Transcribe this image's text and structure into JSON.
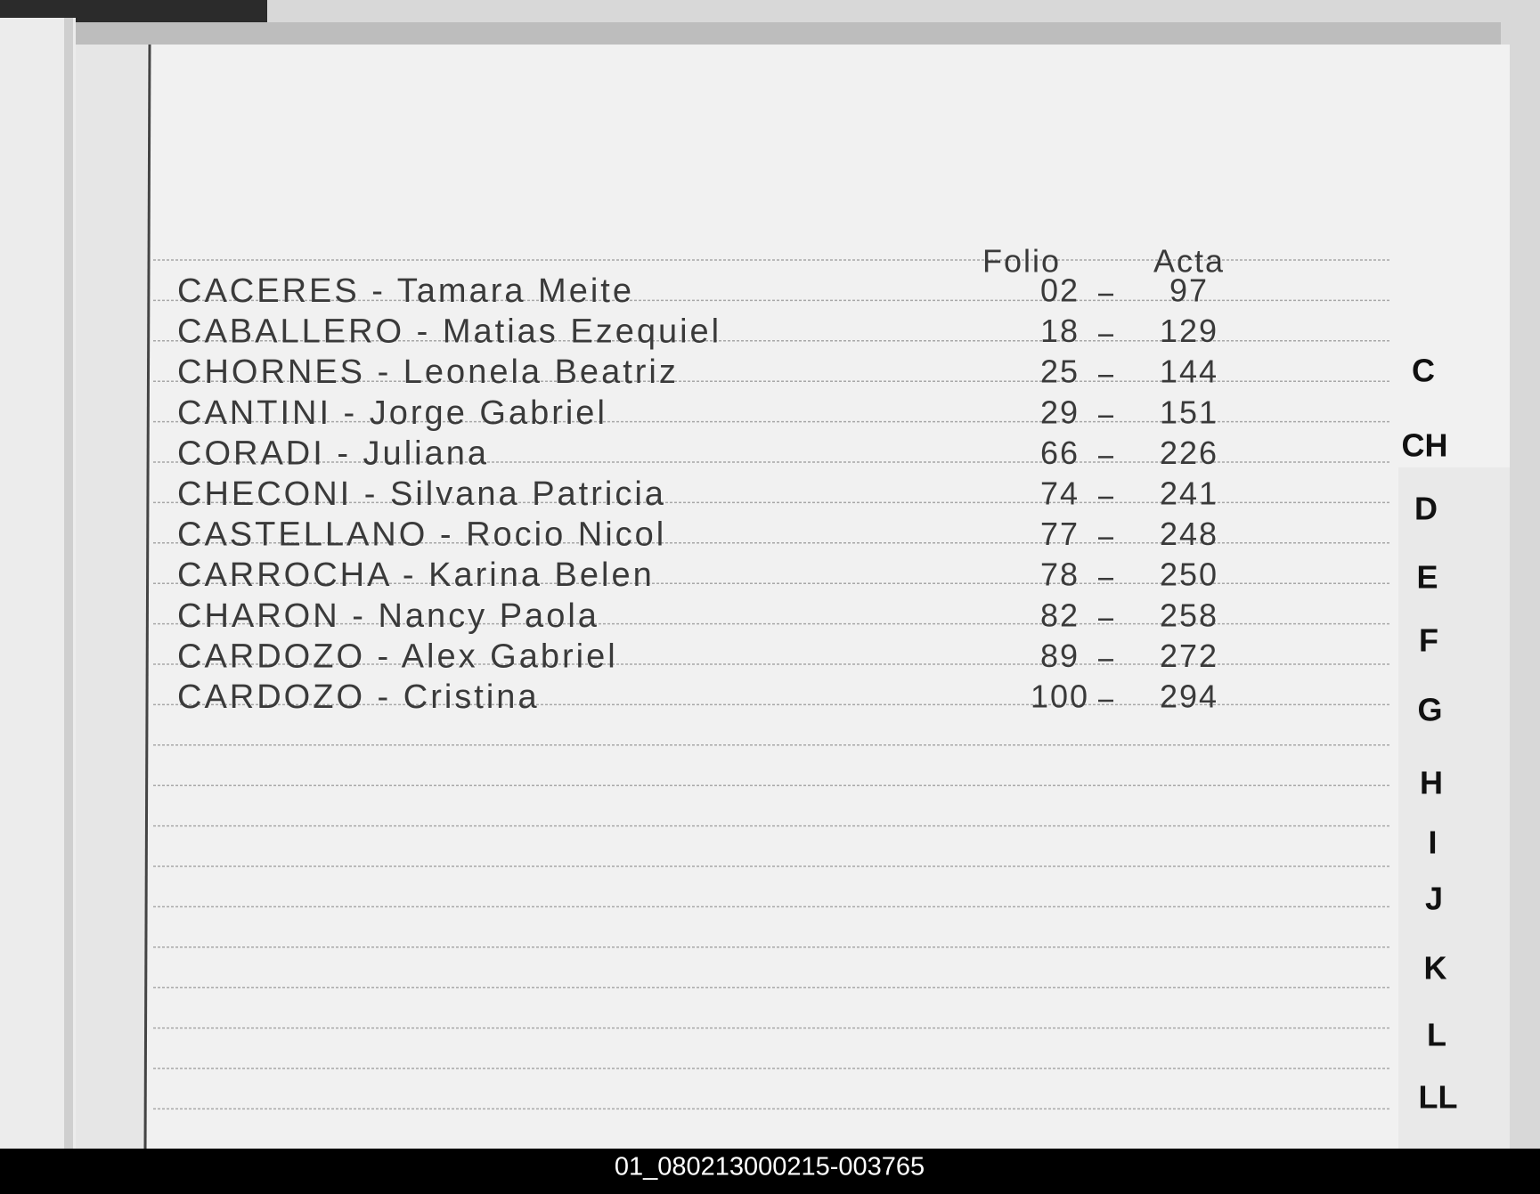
{
  "header": {
    "folio": "Folio",
    "acta": "Acta"
  },
  "entries": [
    {
      "name": "CACERES - Tamara Meite",
      "folio": "02",
      "acta": "97"
    },
    {
      "name": "CABALLERO - Matias Ezequiel",
      "folio": "18",
      "acta": "129"
    },
    {
      "name": "CHORNES - Leonela Beatriz",
      "folio": "25",
      "acta": "144"
    },
    {
      "name": "CANTINI - Jorge Gabriel",
      "folio": "29",
      "acta": "151"
    },
    {
      "name": "CORADI - Juliana",
      "folio": "66",
      "acta": "226"
    },
    {
      "name": "CHECONI - Silvana Patricia",
      "folio": "74",
      "acta": "241"
    },
    {
      "name": "CASTELLANO - Rocio Nicol",
      "folio": "77",
      "acta": "248"
    },
    {
      "name": "CARROCHA - Karina Belen",
      "folio": "78",
      "acta": "250"
    },
    {
      "name": "CHARON - Nancy Paola",
      "folio": "82",
      "acta": "258"
    },
    {
      "name": "CARDOZO - Alex Gabriel",
      "folio": "89",
      "acta": "272"
    },
    {
      "name": "CARDOZO - Cristina",
      "folio": "100",
      "acta": "294"
    }
  ],
  "index_tabs": [
    "C",
    "CH",
    "D",
    "E",
    "F",
    "G",
    "H",
    "I",
    "J",
    "K",
    "L",
    "LL"
  ],
  "footer": {
    "id": "01_080213000215-003765"
  }
}
